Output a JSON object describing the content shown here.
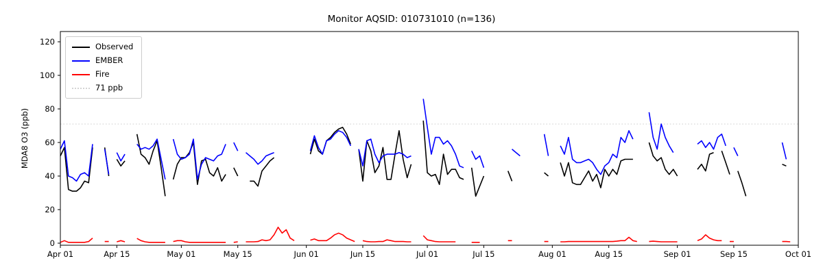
{
  "title": "Monitor AQSID: 010731010 (n=136)",
  "legend": {
    "position": "upper left",
    "items": [
      {
        "label": "Observed",
        "color": "#000000",
        "dash": "solid"
      },
      {
        "label": "EMBER",
        "color": "#0000ff",
        "dash": "solid"
      },
      {
        "label": "Fire",
        "color": "#ff0000",
        "dash": "solid"
      },
      {
        "label": "71 ppb",
        "color": "#d3d3d3",
        "dash": "dotted"
      }
    ]
  },
  "chart_data": {
    "type": "line",
    "title": "Monitor AQSID: 010731010 (n=136)",
    "xlabel": "",
    "ylabel": "MDA8 O3 (ppb)",
    "grid": false,
    "legend_position": "upper left",
    "ylim": [
      0,
      123
    ],
    "yticks": [
      0,
      20,
      40,
      60,
      80,
      100,
      120
    ],
    "threshold": {
      "value": 71,
      "label": "71 ppb",
      "color": "#d3d3d3",
      "style": "dotted"
    },
    "x_axis": {
      "unit": "days since Apr 01",
      "total_days": 183,
      "tick_days": [
        0,
        14,
        30,
        44,
        61,
        75,
        91,
        105,
        122,
        136,
        153,
        167,
        183
      ],
      "tick_labels": [
        "Apr 01",
        "Apr 15",
        "May 01",
        "May 15",
        "Jun 01",
        "Jun 15",
        "Jul 01",
        "Jul 15",
        "Aug 01",
        "Aug 15",
        "Sep 01",
        "Sep 15",
        "Oct 01"
      ]
    },
    "series": [
      {
        "name": "Observed",
        "color": "#000000",
        "values": [
          52,
          57,
          32,
          31,
          31,
          33,
          37,
          36,
          57,
          null,
          null,
          57,
          40,
          null,
          50,
          46,
          49,
          null,
          null,
          65,
          53,
          51,
          47,
          55,
          61,
          45,
          28,
          null,
          38,
          47,
          51,
          51,
          54,
          60,
          35,
          49,
          50,
          42,
          40,
          45,
          37,
          41,
          null,
          45,
          40,
          null,
          null,
          37,
          37,
          34,
          43,
          46,
          49,
          51,
          null,
          null,
          null,
          null,
          null,
          null,
          null,
          null,
          53,
          62,
          55,
          53,
          61,
          63,
          66,
          68,
          69,
          65,
          59,
          null,
          56,
          37,
          61,
          55,
          42,
          46,
          57,
          38,
          38,
          53,
          67,
          50,
          39,
          47,
          null,
          null,
          73,
          42,
          40,
          41,
          35,
          53,
          41,
          44,
          44,
          39,
          38,
          null,
          45,
          28,
          34,
          40,
          null,
          null,
          null,
          null,
          null,
          43,
          37,
          null,
          null,
          null,
          null,
          null,
          null,
          null,
          42,
          40,
          null,
          null,
          48,
          40,
          48,
          36,
          35,
          35,
          39,
          43,
          37,
          41,
          33,
          44,
          40,
          44,
          41,
          49,
          50,
          50,
          50,
          null,
          null,
          null,
          60,
          52,
          49,
          51,
          44,
          41,
          44,
          40,
          null,
          null,
          null,
          null,
          44,
          47,
          43,
          53,
          54,
          null,
          55,
          48,
          41,
          null,
          43,
          36,
          28,
          null,
          null,
          null,
          null,
          null,
          null,
          null,
          null,
          47,
          46,
          null,
          null
        ]
      },
      {
        "name": "EMBER",
        "color": "#0000ff",
        "values": [
          56,
          61,
          40,
          39,
          37,
          41,
          42,
          40,
          59,
          null,
          null,
          56,
          41,
          null,
          54,
          49,
          53,
          null,
          null,
          59,
          56,
          57,
          56,
          58,
          62,
          50,
          38,
          null,
          62,
          53,
          50,
          51,
          53,
          62,
          38,
          47,
          51,
          50,
          49,
          52,
          53,
          59,
          null,
          60,
          55,
          null,
          54,
          52,
          50,
          47,
          49,
          52,
          53,
          54,
          null,
          null,
          null,
          null,
          null,
          null,
          null,
          null,
          55,
          64,
          57,
          53,
          61,
          62,
          65,
          67,
          66,
          63,
          58,
          null,
          56,
          46,
          61,
          62,
          53,
          48,
          52,
          53,
          53,
          53,
          54,
          53,
          51,
          52,
          null,
          null,
          86,
          69,
          53,
          63,
          63,
          59,
          61,
          58,
          53,
          46,
          45,
          null,
          55,
          50,
          52,
          45,
          null,
          null,
          null,
          null,
          null,
          null,
          56,
          54,
          52,
          null,
          null,
          null,
          null,
          null,
          65,
          52,
          null,
          null,
          58,
          53,
          63,
          50,
          48,
          48,
          49,
          50,
          48,
          44,
          41,
          46,
          48,
          53,
          51,
          63,
          60,
          67,
          62,
          null,
          null,
          null,
          78,
          63,
          56,
          71,
          63,
          58,
          54,
          null,
          null,
          null,
          null,
          null,
          59,
          61,
          57,
          60,
          56,
          63,
          65,
          58,
          null,
          57,
          52,
          null,
          null,
          null,
          null,
          null,
          null,
          null,
          null,
          null,
          null,
          60,
          50,
          null,
          null
        ]
      },
      {
        "name": "Fire",
        "color": "#ff0000",
        "values": [
          0.5,
          1.5,
          0.5,
          0.5,
          0.5,
          0.5,
          0.5,
          1,
          3,
          null,
          null,
          1,
          1,
          null,
          0.8,
          1.5,
          0.8,
          null,
          null,
          2.8,
          1.5,
          0.8,
          0.5,
          0.5,
          0.5,
          0.5,
          0.5,
          null,
          1,
          1.5,
          1.5,
          0.8,
          0.5,
          0.5,
          0.5,
          0.5,
          0.5,
          0.5,
          0.5,
          0.5,
          0.5,
          0.5,
          null,
          0.5,
          0.8,
          null,
          0.8,
          0.8,
          0.8,
          1,
          2,
          1.5,
          2,
          5,
          9.5,
          6,
          8,
          3,
          1.5,
          null,
          null,
          null,
          1.8,
          2.5,
          1.5,
          1.5,
          1.5,
          3,
          5,
          6,
          5,
          3,
          2,
          1,
          null,
          1.5,
          1,
          0.8,
          0.8,
          1,
          1,
          2,
          1.5,
          1,
          1,
          1,
          0.8,
          0.8,
          null,
          null,
          4.5,
          2,
          1.5,
          1,
          0.8,
          0.8,
          0.8,
          0.8,
          0.8,
          null,
          null,
          null,
          0.5,
          0.5,
          0.5,
          null,
          null,
          null,
          null,
          null,
          null,
          1.5,
          1.5,
          null,
          null,
          null,
          null,
          null,
          null,
          null,
          1,
          1,
          null,
          null,
          0.8,
          0.8,
          1,
          1,
          1,
          1,
          1,
          1,
          1,
          1,
          1,
          1,
          1,
          1,
          1.2,
          1.5,
          1.5,
          3.5,
          1.5,
          1,
          null,
          null,
          1,
          1.2,
          1,
          0.8,
          0.8,
          0.8,
          0.8,
          0.8,
          null,
          null,
          null,
          null,
          1.5,
          2.5,
          5,
          3,
          2,
          1.5,
          1.5,
          null,
          1,
          1,
          null,
          null,
          null,
          null,
          null,
          null,
          null,
          null,
          null,
          null,
          null,
          1,
          1,
          0.8,
          null
        ]
      }
    ]
  }
}
